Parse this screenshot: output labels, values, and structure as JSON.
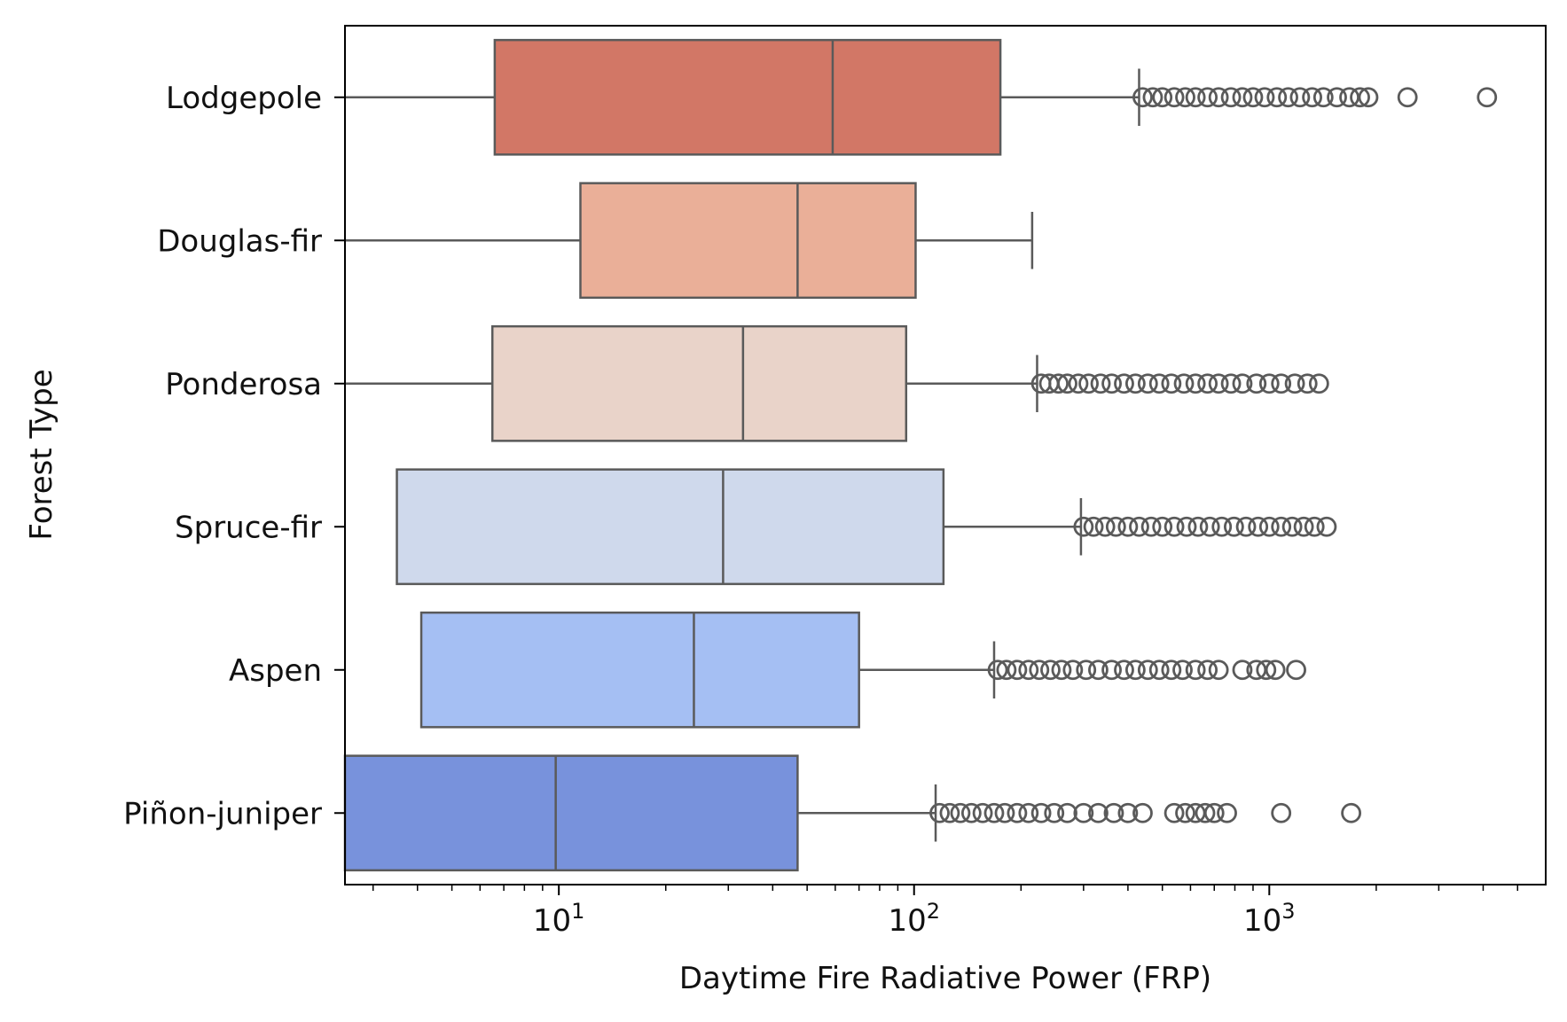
{
  "chart_data": {
    "type": "boxplot",
    "orientation": "horizontal",
    "xlabel": "Daytime Fire Radiative Power (FRP)",
    "ylabel": "Forest Type",
    "xscale": "log",
    "xlim": [
      2.5,
      6000
    ],
    "xticks": [
      {
        "value": 10,
        "base": "10",
        "exp": "1"
      },
      {
        "value": 100,
        "base": "10",
        "exp": "2"
      },
      {
        "value": 1000,
        "base": "10",
        "exp": "3"
      }
    ],
    "grid": false,
    "legend": "none",
    "outlier_color": "#5a5a5a",
    "box_edge_color": "#5a5a5a",
    "categories": [
      "Lodgepole",
      "Douglas-fir",
      "Ponderosa",
      "Spruce-fir",
      "Aspen",
      "Piñon-juniper"
    ],
    "boxes": [
      {
        "category": "Lodgepole",
        "color": "#d27766",
        "whisker_low": 2.5,
        "q1": 6.6,
        "median": 59,
        "q3": 175,
        "whisker_high": 430,
        "outliers": [
          440,
          470,
          500,
          540,
          580,
          620,
          670,
          720,
          780,
          840,
          900,
          970,
          1050,
          1130,
          1220,
          1320,
          1420,
          1550,
          1680,
          1800,
          1900,
          2450,
          4100
        ]
      },
      {
        "category": "Douglas-fir",
        "color": "#eaaf98",
        "whisker_low": 2.5,
        "q1": 11.5,
        "median": 47,
        "q3": 101,
        "whisker_high": 215,
        "outliers": []
      },
      {
        "category": "Ponderosa",
        "color": "#e9d3c9",
        "whisker_low": 2.5,
        "q1": 6.5,
        "median": 33,
        "q3": 95,
        "whisker_high": 222,
        "outliers": [
          228,
          240,
          255,
          270,
          290,
          310,
          335,
          360,
          390,
          420,
          455,
          490,
          530,
          575,
          620,
          670,
          720,
          780,
          840,
          920,
          1000,
          1080,
          1180,
          1280,
          1380
        ]
      },
      {
        "category": "Spruce-fir",
        "color": "#cfd9ec",
        "whisker_low": 3.5,
        "q1": 3.5,
        "median": 29,
        "q3": 121,
        "whisker_high": 295,
        "outliers": [
          300,
          320,
          345,
          370,
          400,
          430,
          465,
          500,
          540,
          585,
          630,
          680,
          735,
          795,
          860,
          930,
          1000,
          1080,
          1160,
          1250,
          1340,
          1450
        ]
      },
      {
        "category": "Aspen",
        "color": "#a5bff3",
        "whisker_low": 4.1,
        "q1": 4.1,
        "median": 24,
        "q3": 70,
        "whisker_high": 168,
        "outliers": [
          172,
          182,
          195,
          210,
          225,
          242,
          260,
          280,
          305,
          330,
          360,
          390,
          420,
          455,
          490,
          530,
          570,
          620,
          670,
          720,
          840,
          920,
          980,
          1040,
          1190
        ]
      },
      {
        "category": "Piñon-juniper",
        "color": "#7892dc",
        "whisker_low": 2.5,
        "q1": 2.5,
        "median": 9.8,
        "q3": 47,
        "whisker_high": 115,
        "outliers": [
          118,
          126,
          135,
          145,
          156,
          168,
          180,
          195,
          210,
          228,
          248,
          270,
          300,
          330,
          365,
          400,
          440,
          540,
          580,
          620,
          660,
          700,
          760,
          1080,
          1700
        ]
      }
    ]
  }
}
